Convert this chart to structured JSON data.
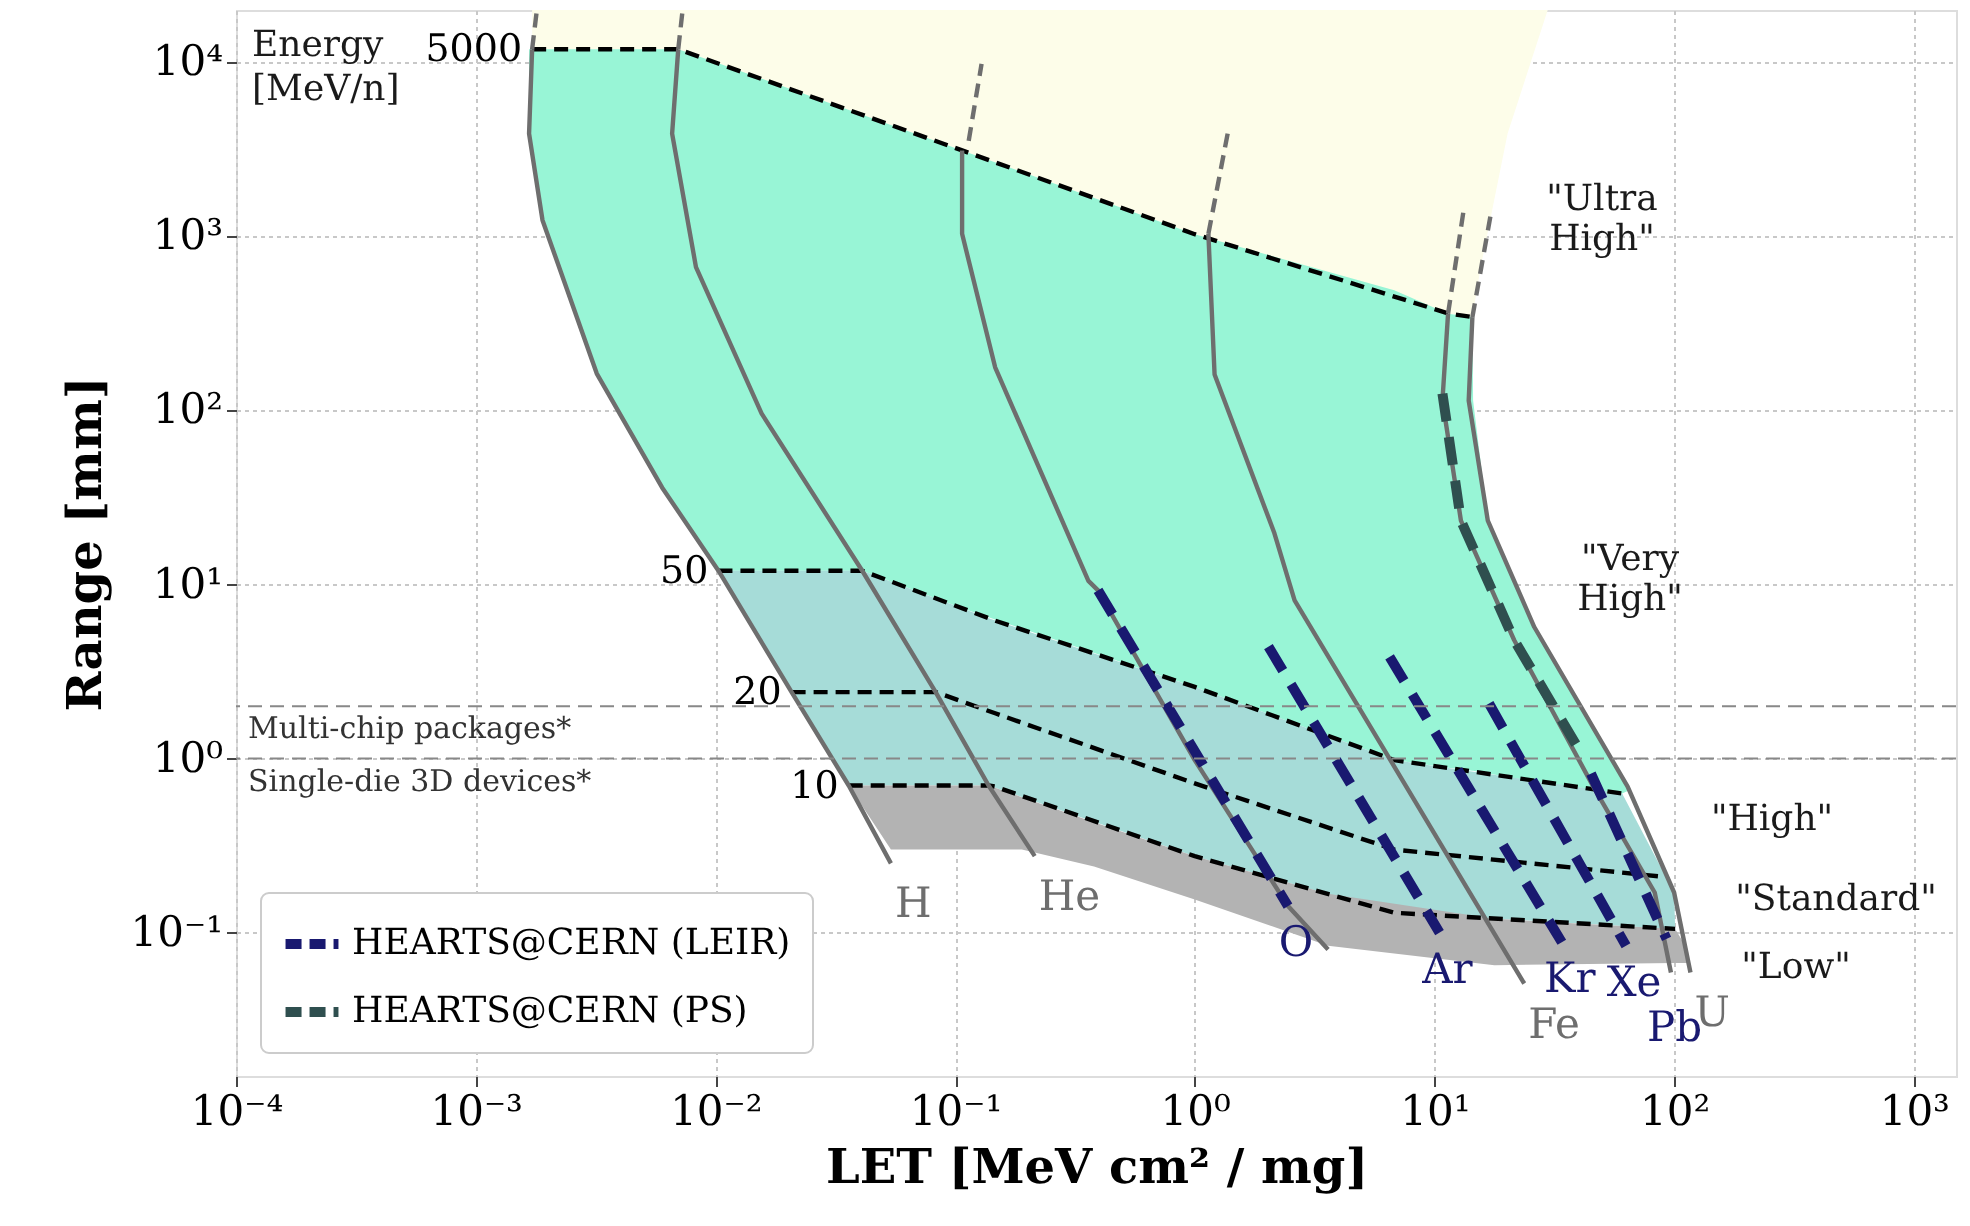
{
  "chart_data": {
    "type": "line",
    "xlabel": "LET [MeV cm² / mg]",
    "ylabel": "Range [mm]",
    "log": "xy",
    "grid": true,
    "legend": "bottom left",
    "xlim": [
      0.0001,
      1500
    ],
    "ylim": [
      0.015,
      20000
    ],
    "xticks": [
      {
        "value": 0.0001,
        "label": "10⁻⁴"
      },
      {
        "value": 0.001,
        "label": "10⁻³"
      },
      {
        "value": 0.01,
        "label": "10⁻²"
      },
      {
        "value": 0.1,
        "label": "10⁻¹"
      },
      {
        "value": 1,
        "label": "10⁰"
      },
      {
        "value": 10,
        "label": "10¹"
      },
      {
        "value": 100,
        "label": "10²"
      },
      {
        "value": 1000,
        "label": "10³"
      }
    ],
    "yticks": [
      {
        "value": 0.1,
        "label": "10⁻¹"
      },
      {
        "value": 1,
        "label": "10⁰"
      },
      {
        "value": 10,
        "label": "10¹"
      },
      {
        "value": 100,
        "label": "10²"
      },
      {
        "value": 1000,
        "label": "10³"
      },
      {
        "value": 10000,
        "label": "10⁴"
      }
    ],
    "ref_lines": [
      {
        "axis": "y",
        "value": 2,
        "label": "Multi-chip packages*",
        "color": "#888888",
        "line_style": "dashed"
      },
      {
        "axis": "y",
        "value": 1,
        "label": "Single-die 3D devices*",
        "color": "#888888",
        "line_style": "dashed"
      }
    ],
    "annotations": [
      "Energy",
      "[MeV/n]",
      "\"Ultra\nHigh\"",
      "\"Very\nHigh\"",
      "\"High\"",
      "\"Standard\"",
      "\"Low\""
    ],
    "series": [
      {
        "type": "area",
        "color": "#fdfde9",
        "x": [
          0.00172,
          0.007,
          0.107,
          1.0,
          11.5,
          14.4,
          15.6,
          20.2,
          29.7
        ],
        "values": [
          null,
          null,
          null,
          null,
          null,
          null,
          null,
          null,
          null
        ],
        "upper": [
          20000,
          20000,
          20000,
          20000,
          20000,
          20000,
          20000,
          20000,
          20000
        ],
        "lower": [
          11900,
          11900,
          3120,
          1030,
          360,
          344,
          667,
          3900,
          20000
        ]
      },
      {
        "type": "area",
        "color": "#98f5d6",
        "x": [
          0.00167,
          0.0019,
          0.0032,
          0.006,
          0.007,
          0.0103,
          0.041,
          0.107,
          1.0,
          6.8,
          11.4,
          14.4,
          14.5,
          16.7,
          26.1,
          60.7,
          64
        ],
        "values": [
          null,
          null,
          null,
          null,
          null,
          null,
          null,
          null,
          null,
          null,
          null,
          null,
          null,
          null,
          null,
          null,
          null
        ],
        "upper": [
          11900,
          11900,
          11900,
          11900,
          11900,
          9900,
          5000,
          3120,
          1030,
          490,
          360,
          344,
          114,
          23.3,
          5.7,
          0.75,
          0.69
        ],
        "lower": [
          3900,
          1240,
          163,
          36,
          26,
          12,
          12,
          7.3,
          2.58,
          0.98,
          0.885,
          0.85,
          0.85,
          0.82,
          0.74,
          0.63,
          0.65
        ]
      },
      {
        "type": "area",
        "color": "#a6dcd8",
        "x": [
          0.0103,
          0.0208,
          0.036,
          0.041,
          0.138,
          1.0,
          6.8,
          60.7,
          100,
          101
        ],
        "values": [
          null,
          null,
          null,
          null,
          null,
          null,
          null,
          null,
          null,
          null
        ],
        "upper": [
          12,
          12,
          12,
          12,
          6.4,
          2.58,
          0.98,
          0.63,
          0.17,
          0.105
        ],
        "lower": [
          12,
          2.41,
          0.7,
          0.7,
          0.7,
          0.275,
          0.13,
          0.109,
          0.105,
          0.105
        ]
      },
      {
        "type": "area",
        "color": "#b3b3b3",
        "x": [
          0.036,
          0.054,
          0.138,
          0.19,
          0.38,
          1.0,
          3.6,
          17.8,
          101,
          114,
          117
        ],
        "values": [
          null,
          null,
          null,
          null,
          null,
          null,
          null,
          null,
          null,
          null,
          null
        ],
        "upper": [
          0.7,
          0.7,
          0.7,
          0.6,
          0.43,
          0.275,
          0.167,
          0.12,
          0.105,
          0.08,
          0.059
        ],
        "lower": [
          0.7,
          0.3,
          0.3,
          0.3,
          0.24,
          0.155,
          0.084,
          0.065,
          0.067,
          0.067,
          0.059
        ]
      },
      {
        "name": "5000",
        "color": "#000000",
        "line_style": "dashed",
        "x": [
          0.00172,
          0.007,
          0.107,
          1.0,
          11.5,
          14.4
        ],
        "values": [
          11900,
          11900,
          3120,
          1030,
          360,
          344
        ]
      },
      {
        "name": "50",
        "color": "#000000",
        "line_style": "dashed",
        "x": [
          0.0103,
          0.041,
          0.147,
          1.0,
          6.8,
          60.7
        ],
        "values": [
          12,
          12,
          6.2,
          2.58,
          0.98,
          0.63
        ]
      },
      {
        "name": "20",
        "color": "#000000",
        "line_style": "dashed",
        "x": [
          0.0208,
          0.083,
          0.147,
          1.0,
          6.8,
          88
        ],
        "values": [
          2.41,
          2.41,
          1.82,
          0.72,
          0.3,
          0.21
        ]
      },
      {
        "name": "10",
        "color": "#000000",
        "line_style": "dashed",
        "x": [
          0.036,
          0.138,
          0.147,
          1.0,
          6.8,
          101
        ],
        "values": [
          0.7,
          0.7,
          0.69,
          0.275,
          0.13,
          0.105
        ]
      },
      {
        "name": "H",
        "color": "#6e6e6e",
        "line_style": "solid",
        "x": [
          0.00172,
          0.00167,
          0.0019,
          0.0032,
          0.006,
          0.0103,
          0.0208,
          0.036,
          0.054
        ],
        "values": [
          11900,
          3900,
          1240,
          163,
          36,
          12,
          2.41,
          0.7,
          0.25
        ]
      },
      {
        "name": "He",
        "color": "#6e6e6e",
        "line_style": "solid",
        "x": [
          0.007,
          0.0066,
          0.0083,
          0.0156,
          0.041,
          0.083,
          0.138,
          0.215
        ],
        "values": [
          11900,
          3900,
          667,
          96,
          12,
          2.41,
          0.7,
          0.275
        ]
      },
      {
        "color": "#6e6e6e",
        "line_style": "solid",
        "x": [
          0.107,
          0.107,
          0.147,
          0.36,
          0.395,
          1.0,
          2.45,
          3.6
        ],
        "values": [
          3120,
          1035,
          177,
          10.5,
          9.25,
          0.98,
          0.142,
          0.08
        ]
      },
      {
        "name": "Fe",
        "color": "#6e6e6e",
        "line_style": "solid",
        "x": [
          1.14,
          1.21,
          2.15,
          2.61,
          6.8,
          23.7
        ],
        "values": [
          1035,
          161,
          19.7,
          8.1,
          0.9,
          0.051
        ]
      },
      {
        "color": "#6e6e6e",
        "line_style": "solid",
        "x": [
          11.4,
          10.8,
          12.9,
          21.5,
          46,
          83,
          97
        ],
        "values": [
          360,
          114,
          23.3,
          4.8,
          0.69,
          0.17,
          0.059
        ]
      },
      {
        "name": "U",
        "color": "#6e6e6e",
        "line_style": "solid",
        "x": [
          14.4,
          13.9,
          16.7,
          26.1,
          64,
          100,
          117
        ],
        "values": [
          344,
          114,
          23.3,
          5.7,
          0.69,
          0.17,
          0.059
        ]
      },
      {
        "color": "#6e6e6e",
        "line_style": "dashed",
        "x": [
          0.00172,
          0.0018,
          null,
          0.007,
          0.0073,
          null,
          0.114,
          0.129,
          null,
          1.14,
          1.38,
          null,
          11.4,
          13.3,
          null,
          14.4,
          17.2
        ],
        "values": [
          11900,
          20000,
          null,
          11900,
          20000,
          null,
          3540,
          9800,
          null,
          1035,
          4060,
          null,
          360,
          1475,
          null,
          344,
          1350
        ]
      },
      {
        "name": "HEARTS@CERN (LEIR)",
        "color": "#191970",
        "line_style": "dashed",
        "x": [
          0.395,
          2.45,
          null,
          2.03,
          10.5,
          null,
          6.5,
          34,
          null,
          16.9,
          63,
          null,
          45,
          93
        ],
        "values": [
          9.25,
          0.142,
          null,
          4.4,
          0.1,
          null,
          3.84,
          0.088,
          null,
          2.07,
          0.084,
          null,
          0.82,
          0.092
        ],
        "value_labels": [
          null,
          "O",
          null,
          null,
          "Ar",
          null,
          null,
          "Kr",
          null,
          null,
          "Xe",
          null,
          null,
          "Pb"
        ]
      },
      {
        "name": "HEARTS@CERN (PS)",
        "color": "#2f4f4f",
        "line_style": "dashed",
        "x": [
          10.8,
          12.9,
          21.5,
          41
        ],
        "values": [
          125,
          23.3,
          4.8,
          1.07
        ]
      }
    ]
  }
}
